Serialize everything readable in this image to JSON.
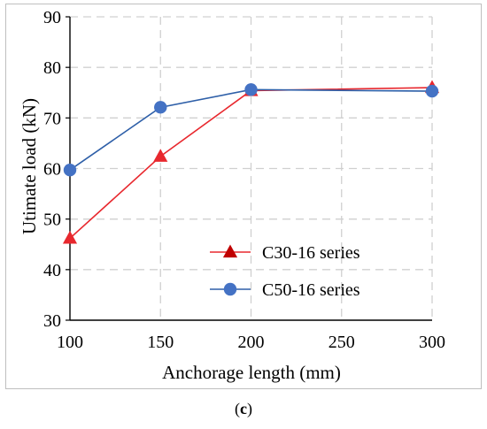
{
  "chart_data": {
    "type": "line",
    "xlabel": "Anchorage length (mm)",
    "ylabel": "Utimate load (kN)",
    "x_ticks": [
      100,
      150,
      200,
      250,
      300
    ],
    "y_ticks": [
      30,
      40,
      50,
      60,
      70,
      80,
      90
    ],
    "xlim": [
      100,
      300
    ],
    "ylim": [
      30,
      90
    ],
    "grid": true,
    "legend_position": "bottom-right-center",
    "series": [
      {
        "name": "C30-16 series",
        "color": "#e8282e",
        "marker": "triangle",
        "marker_color": "#c00000",
        "x": [
          100,
          150,
          200,
          300
        ],
        "y": [
          46.2,
          62.4,
          75.4,
          76.0
        ]
      },
      {
        "name": "C50-16 series",
        "color": "#2e5fa8",
        "marker": "circle",
        "marker_color": "#4472c4",
        "x": [
          100,
          150,
          200,
          300
        ],
        "y": [
          59.7,
          72.1,
          75.6,
          75.3
        ]
      }
    ]
  },
  "caption": {
    "label": "c"
  }
}
